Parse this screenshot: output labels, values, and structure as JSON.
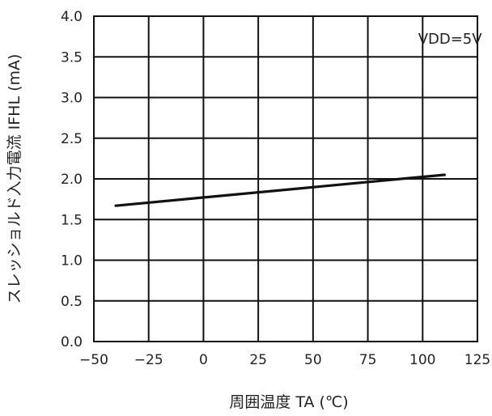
{
  "chart_data": {
    "type": "line",
    "xlabel": "周囲温度 TA (℃)",
    "ylabel": "スレッショルド入力電流 IFHL (mA)",
    "xlim": [
      -50,
      125
    ],
    "ylim": [
      0,
      4
    ],
    "xticks": [
      -50,
      -25,
      0,
      25,
      50,
      75,
      100,
      125
    ],
    "yticks": [
      0.0,
      0.5,
      1.0,
      1.5,
      2.0,
      2.5,
      3.0,
      3.5,
      4.0
    ],
    "xtick_labels": [
      "−50",
      "−25",
      "0",
      "25",
      "50",
      "75",
      "100",
      "125"
    ],
    "ytick_labels": [
      "0.0",
      "0.5",
      "1.0",
      "1.5",
      "2.0",
      "2.5",
      "3.0",
      "3.5",
      "4.0"
    ],
    "grid": true,
    "annotation": "VDD=5V",
    "series": [
      {
        "x": [
          -40,
          110
        ],
        "y": [
          1.67,
          2.05
        ]
      }
    ]
  }
}
